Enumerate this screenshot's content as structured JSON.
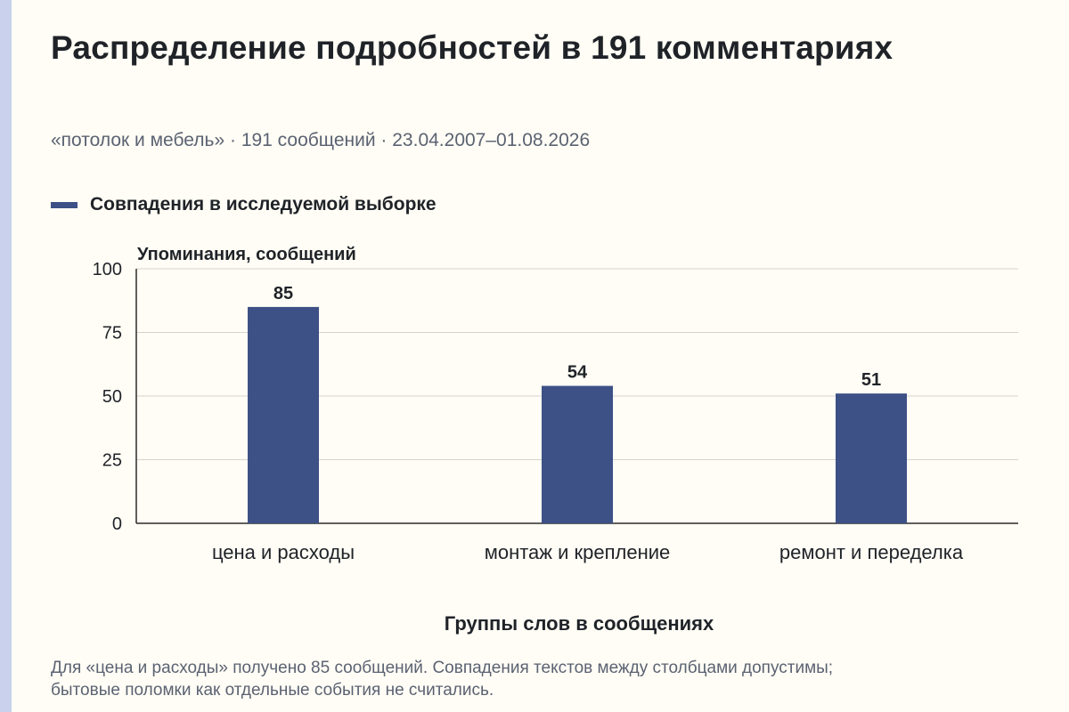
{
  "title": "Распределение подробностей в 191 комментариях",
  "subtitle": "«потолок и мебель» · 191 сообщений · 23.04.2007–01.08.2026",
  "legend": {
    "label": "Совпадения в исследуемой выборке",
    "color": "#3d5186"
  },
  "footnote": "Для «цена и расходы» получено 85 сообщений. Совпадения текстов между столбцами допустимы; бытовые поломки как отдельные события не считались.",
  "chart_data": {
    "type": "bar",
    "title": "Распределение подробностей в 191 комментариях",
    "xlabel": "Группы слов в сообщениях",
    "ylabel": "Упоминания, сообщений",
    "categories": [
      "цена и расходы",
      "монтаж и крепление",
      "ремонт и переделка"
    ],
    "series": [
      {
        "name": "Совпадения в исследуемой выборке",
        "values": [
          85,
          54,
          51
        ],
        "color": "#3d5186"
      }
    ],
    "ylim": [
      0,
      100
    ],
    "yticks": [
      0,
      25,
      50,
      75,
      100
    ],
    "grid": true,
    "legend_position": "top-left",
    "data_labels": true
  }
}
